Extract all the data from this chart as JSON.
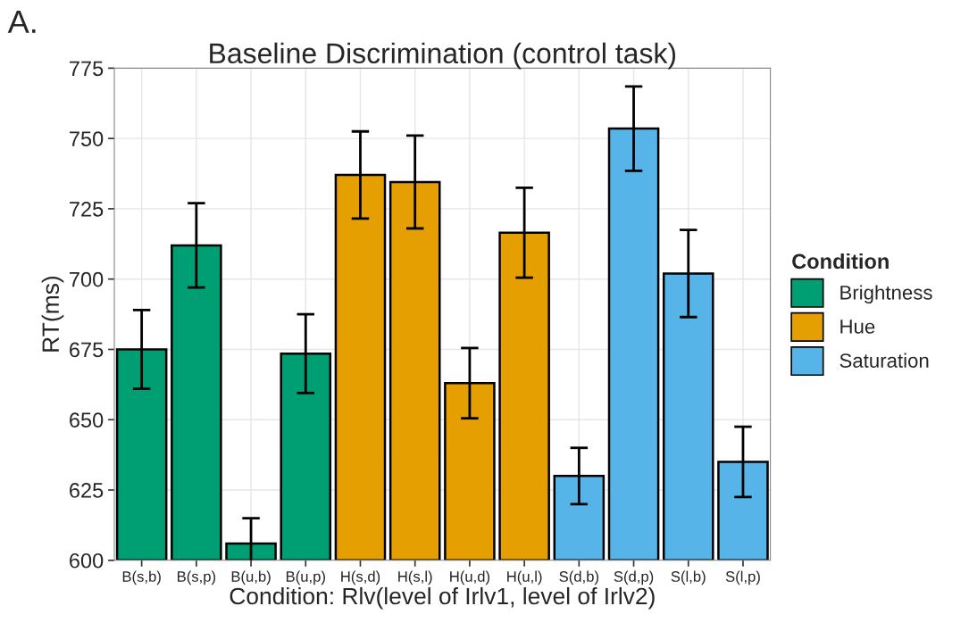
{
  "chart_data": {
    "type": "bar",
    "title": "Baseline Discrimination (control task)",
    "xlabel": "Condition: Rlv(level of Irlv1, level of Irlv2)",
    "ylabel": "RT(ms)",
    "legend_title": "Condition",
    "annotations": [
      "A."
    ],
    "categories": [
      "B(s,b)",
      "B(s,p)",
      "B(u,b)",
      "B(u,p)",
      "H(s,d)",
      "H(s,l)",
      "H(u,d)",
      "H(u,l)",
      "S(d,b)",
      "S(d,p)",
      "S(l,b)",
      "S(l,p)"
    ],
    "series": [
      {
        "name": "Brightness",
        "color": "#009e73",
        "values": [
          675,
          712,
          606,
          673.5,
          null,
          null,
          null,
          null,
          null,
          null,
          null,
          null
        ],
        "errors": [
          14,
          15,
          9,
          14,
          null,
          null,
          null,
          null,
          null,
          null,
          null,
          null
        ]
      },
      {
        "name": "Hue",
        "color": "#e69f00",
        "values": [
          null,
          null,
          null,
          null,
          737,
          734.5,
          663,
          716.5,
          null,
          null,
          null,
          null
        ],
        "errors": [
          null,
          null,
          null,
          null,
          15.5,
          16.5,
          12.5,
          16,
          null,
          null,
          null,
          null
        ]
      },
      {
        "name": "Saturation",
        "color": "#56b4e9",
        "values": [
          null,
          null,
          null,
          null,
          null,
          null,
          null,
          null,
          630,
          753.5,
          702,
          635
        ],
        "errors": [
          null,
          null,
          null,
          null,
          null,
          null,
          null,
          null,
          10,
          15,
          15.5,
          12.5
        ]
      }
    ],
    "ylim": [
      600,
      775
    ],
    "yticks": [
      600,
      625,
      650,
      675,
      700,
      725,
      750,
      775
    ],
    "grid": true,
    "legend": "right"
  }
}
